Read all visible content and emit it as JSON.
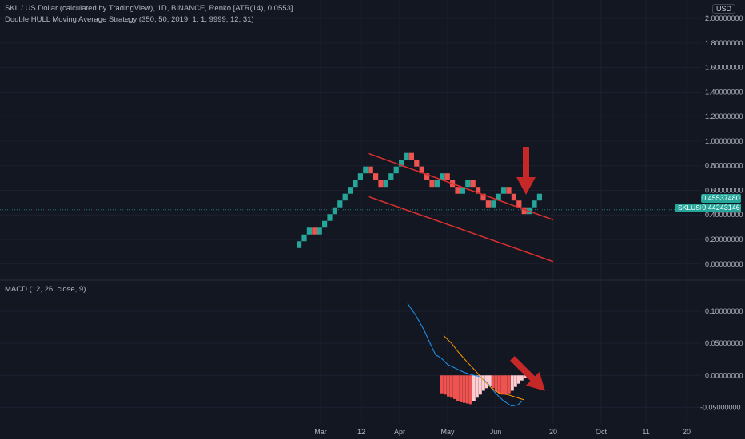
{
  "header": {
    "title": "SKL / US Dollar (calculated by TradingView), 1D, BINANCE, Renko [ATR(14), 0.0553]",
    "strategy": "Double HULL Moving Average Strategy (350, 50, 2019, 1, 1, 9999, 12, 31)",
    "currency": "USD",
    "symbol": "SKLUSD",
    "price_tags": [
      "0.45537480",
      "0.44243146"
    ]
  },
  "colors": {
    "background": "#131722",
    "up_brick": "#26a69a",
    "down_brick": "#ef5350",
    "trendline": "#d32f2f",
    "macd_line": "#2196f3",
    "signal_line": "#ff9800",
    "histogram_dark": "#ef5350",
    "histogram_light": "#ffcdd2",
    "arrow": "#c62828"
  },
  "chart_data": [
    {
      "type": "renko",
      "brick_size": 0.0553,
      "y_ticks": [
        "2.00000000",
        "1.80000000",
        "1.60000000",
        "1.40000000",
        "1.20000000",
        "1.00000000",
        "0.80000000",
        "0.60000000",
        "0.40000000",
        "0.20000000",
        "0.00000000"
      ],
      "ylim": [
        -0.06,
        2.02
      ],
      "x_ticks": [
        "Mar",
        "12",
        "Apr",
        "May",
        "Jun",
        "20",
        "Oct",
        "11",
        "20"
      ],
      "bricks": [
        "up",
        "up",
        "up",
        "down",
        "up",
        "up",
        "up",
        "up",
        "up",
        "up",
        "up",
        "up",
        "up",
        "up",
        "down",
        "down",
        "down",
        "up",
        "up",
        "up",
        "up",
        "up",
        "down",
        "down",
        "down",
        "down",
        "down",
        "up",
        "up",
        "down",
        "down",
        "down",
        "up",
        "up",
        "down",
        "down",
        "down",
        "down",
        "up",
        "up",
        "up",
        "down",
        "down",
        "down",
        "down",
        "up",
        "up",
        "up"
      ],
      "start_level": 0.13,
      "trend_channel": {
        "upper": [
          [
            0.9,
            0.9
          ],
          [
            12.0,
            0.36
          ]
        ],
        "lower": [
          [
            0.55,
            0.55
          ],
          [
            12.0,
            0.02
          ]
        ]
      }
    },
    {
      "type": "macd",
      "title": "MACD (12, 26, close, 9)",
      "y_ticks": [
        "0.10000000",
        "0.05000000",
        "0.00000000",
        "-0.05000000"
      ],
      "ylim": [
        -0.072,
        0.135
      ],
      "macd": [
        [
          510,
          0.112
        ],
        [
          520,
          0.094
        ],
        [
          530,
          0.072
        ],
        [
          540,
          0.045
        ],
        [
          545,
          0.032
        ],
        [
          552,
          0.027
        ],
        [
          560,
          0.017
        ],
        [
          570,
          0.011
        ],
        [
          580,
          0.005
        ],
        [
          590,
          0.001
        ],
        [
          600,
          -0.002
        ],
        [
          610,
          -0.012
        ],
        [
          620,
          -0.028
        ],
        [
          630,
          -0.04
        ],
        [
          640,
          -0.048
        ],
        [
          648,
          -0.046
        ],
        [
          653,
          -0.04
        ]
      ],
      "signal": [
        [
          555,
          0.062
        ],
        [
          565,
          0.05
        ],
        [
          575,
          0.034
        ],
        [
          585,
          0.02
        ],
        [
          595,
          0.007
        ],
        [
          605,
          -0.008
        ],
        [
          615,
          -0.02
        ],
        [
          625,
          -0.028
        ],
        [
          635,
          -0.03
        ],
        [
          645,
          -0.034
        ],
        [
          655,
          -0.038
        ]
      ],
      "histogram": [
        -0.028,
        -0.03,
        -0.033,
        -0.035,
        -0.037,
        -0.04,
        -0.042,
        -0.043,
        -0.044,
        -0.045,
        -0.04,
        -0.035,
        -0.03,
        -0.024,
        -0.02,
        -0.017,
        -0.02,
        -0.025,
        -0.028,
        -0.03,
        -0.03,
        -0.028,
        -0.024,
        -0.018,
        -0.013,
        -0.008,
        -0.004
      ],
      "histogram_shade": [
        "d",
        "d",
        "d",
        "d",
        "d",
        "d",
        "d",
        "d",
        "d",
        "d",
        "l",
        "l",
        "l",
        "l",
        "l",
        "l",
        "d",
        "d",
        "d",
        "d",
        "d",
        "d",
        "l",
        "l",
        "l",
        "l",
        "l"
      ]
    }
  ]
}
